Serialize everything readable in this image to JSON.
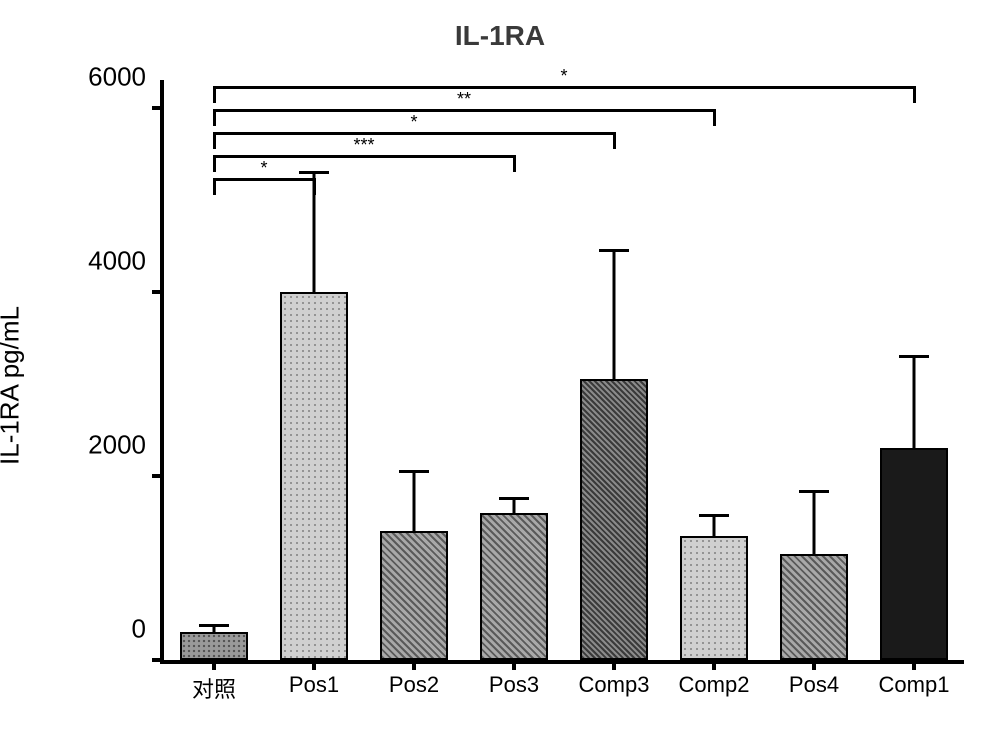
{
  "chart": {
    "type": "bar",
    "title": "IL-1RA",
    "title_fontsize": 28,
    "title_fontweight": "bold",
    "title_color": "#3a3a3a",
    "ylabel": "IL-1RA pg/mL",
    "ylabel_fontsize": 26,
    "background_color": "#ffffff",
    "axis_color": "#000000",
    "ylim": [
      0,
      6000
    ],
    "yticks": [
      0,
      2000,
      4000,
      6000
    ],
    "ytick_fontsize": 26,
    "xtick_fontsize": 22,
    "categories": [
      "对照",
      "Pos1",
      "Pos2",
      "Pos3",
      "Comp3",
      "Comp2",
      "Pos4",
      "Comp1"
    ],
    "values": [
      300,
      4000,
      1400,
      1600,
      3050,
      1350,
      1150,
      2300
    ],
    "errors": [
      80,
      1300,
      650,
      150,
      1400,
      220,
      680,
      1000
    ],
    "bar_width_ratio": 0.68,
    "error_cap_ratio": 0.3,
    "bar_patterns": [
      {
        "base": "#999999",
        "type": "dots"
      },
      {
        "base": "#b5b5b5",
        "type": "light-dots"
      },
      {
        "base": "#808080",
        "type": "diag"
      },
      {
        "base": "#808080",
        "type": "diag"
      },
      {
        "base": "#707070",
        "type": "dense-diag"
      },
      {
        "base": "#b5b5b5",
        "type": "light-dots"
      },
      {
        "base": "#808080",
        "type": "diag"
      },
      {
        "base": "#1a1a1a",
        "type": "solid"
      }
    ],
    "significance": [
      {
        "from": 0,
        "to": 1,
        "y": 5200,
        "label": "*"
      },
      {
        "from": 0,
        "to": 3,
        "y": 5450,
        "label": "***"
      },
      {
        "from": 0,
        "to": 4,
        "y": 5700,
        "label": "*"
      },
      {
        "from": 0,
        "to": 5,
        "y": 5950,
        "label": "**"
      },
      {
        "from": 0,
        "to": 7,
        "y": 6200,
        "label": "*"
      }
    ],
    "sig_fontsize": 18,
    "sig_drop": 150,
    "extra_y_top": 6300
  }
}
